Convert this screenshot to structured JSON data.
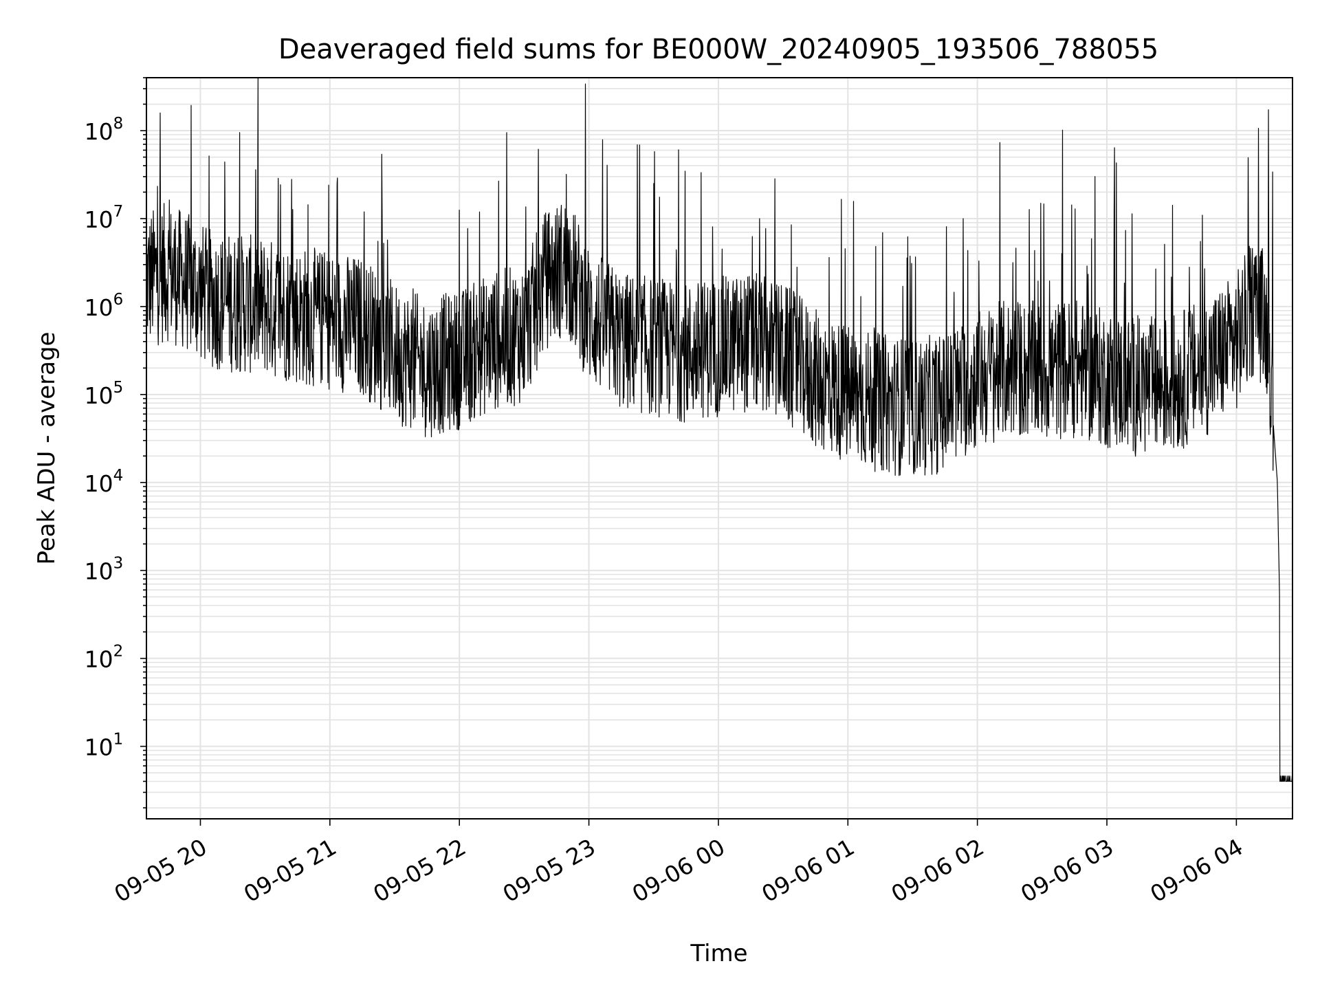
{
  "chart_data": {
    "type": "line",
    "title": "Deaveraged field sums for BE000W_20240905_193506_788055",
    "xlabel": "Time",
    "ylabel": "Peak ADU - average",
    "y_scale": "log",
    "ylim": [
      1.5,
      400000000
    ],
    "xlim": [
      "2024-09-05 19:35",
      "2024-09-06 04:26"
    ],
    "grid": true,
    "x_ticks": [
      "09-05 20",
      "09-05 21",
      "09-05 22",
      "09-05 23",
      "09-06 00",
      "09-06 01",
      "09-06 02",
      "09-06 03",
      "09-06 04"
    ],
    "y_ticks": [
      {
        "base": "10",
        "exp": "1"
      },
      {
        "base": "10",
        "exp": "2"
      },
      {
        "base": "10",
        "exp": "3"
      },
      {
        "base": "10",
        "exp": "4"
      },
      {
        "base": "10",
        "exp": "5"
      },
      {
        "base": "10",
        "exp": "6"
      },
      {
        "base": "10",
        "exp": "7"
      },
      {
        "base": "10",
        "exp": "8"
      }
    ],
    "series": [
      {
        "color": "#000000",
        "x": [
          "2024-09-05 19:35",
          "2024-09-05 19:45",
          "2024-09-05 19:55",
          "2024-09-05 20:05",
          "2024-09-05 20:15",
          "2024-09-05 20:30",
          "2024-09-05 20:45",
          "2024-09-05 21:00",
          "2024-09-05 21:15",
          "2024-09-05 21:30",
          "2024-09-05 21:45",
          "2024-09-05 22:00",
          "2024-09-05 22:15",
          "2024-09-05 22:30",
          "2024-09-05 22:40",
          "2024-09-05 22:50",
          "2024-09-05 23:00",
          "2024-09-05 23:15",
          "2024-09-05 23:30",
          "2024-09-05 23:45",
          "2024-09-06 00:00",
          "2024-09-06 00:15",
          "2024-09-06 00:30",
          "2024-09-06 00:45",
          "2024-09-06 01:00",
          "2024-09-06 01:15",
          "2024-09-06 01:30",
          "2024-09-06 01:45",
          "2024-09-06 02:00",
          "2024-09-06 02:15",
          "2024-09-06 02:30",
          "2024-09-06 02:45",
          "2024-09-06 03:00",
          "2024-09-06 03:15",
          "2024-09-06 03:30",
          "2024-09-06 03:45",
          "2024-09-06 04:00",
          "2024-09-06 04:08",
          "2024-09-06 04:12",
          "2024-09-06 04:15",
          "2024-09-06 04:17",
          "2024-09-06 04:19",
          "2024-09-06 04:20",
          "2024-09-06 04:21",
          "2024-09-06 04:26"
        ],
        "y": [
          2000000,
          2500000,
          1800000,
          1200000,
          1100000,
          1000000,
          800000,
          700000,
          600000,
          300000,
          200000,
          250000,
          400000,
          500000,
          2000000,
          3000000,
          800000,
          400000,
          350000,
          300000,
          350000,
          400000,
          300000,
          150000,
          100000,
          80000,
          70000,
          80000,
          150000,
          200000,
          180000,
          200000,
          150000,
          120000,
          130000,
          200000,
          400000,
          1000000,
          800000,
          500000,
          50000,
          10000,
          500,
          4,
          4
        ]
      }
    ]
  }
}
